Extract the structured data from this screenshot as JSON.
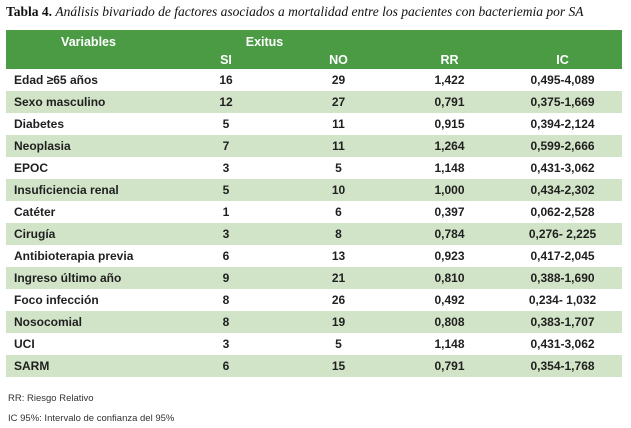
{
  "title": {
    "label": "Tabla 4.",
    "text": "Análisis bivariado de factores asociados a mortalidad entre los pacientes con bacteriemia por SA"
  },
  "table": {
    "group_header": {
      "variables": "Variables",
      "exitus": "Exitus"
    },
    "columns": [
      "SI",
      "NO",
      "RR",
      "IC"
    ],
    "rows": [
      {
        "variable": "Edad ≥65 años",
        "si": "16",
        "no": "29",
        "rr": "1,422",
        "ic": "0,495-4,089"
      },
      {
        "variable": "Sexo masculino",
        "si": "12",
        "no": "27",
        "rr": "0,791",
        "ic": "0,375-1,669"
      },
      {
        "variable": "Diabetes",
        "si": "5",
        "no": "11",
        "rr": "0,915",
        "ic": "0,394-2,124"
      },
      {
        "variable": "Neoplasia",
        "si": "7",
        "no": "11",
        "rr": "1,264",
        "ic": "0,599-2,666"
      },
      {
        "variable": "EPOC",
        "si": "3",
        "no": "5",
        "rr": "1,148",
        "ic": "0,431-3,062"
      },
      {
        "variable": "Insuficiencia renal",
        "si": "5",
        "no": "10",
        "rr": "1,000",
        "ic": "0,434-2,302"
      },
      {
        "variable": "Catéter",
        "si": "1",
        "no": "6",
        "rr": "0,397",
        "ic": "0,062-2,528"
      },
      {
        "variable": "Cirugía",
        "si": "3",
        "no": "8",
        "rr": "0,784",
        "ic": "0,276- 2,225"
      },
      {
        "variable": "Antibioterapia previa",
        "si": "6",
        "no": "13",
        "rr": "0,923",
        "ic": "0,417-2,045"
      },
      {
        "variable": "Ingreso último año",
        "si": "9",
        "no": "21",
        "rr": "0,810",
        "ic": "0,388-1,690"
      },
      {
        "variable": "Foco infección",
        "si": "8",
        "no": "26",
        "rr": "0,492",
        "ic": "0,234- 1,032"
      },
      {
        "variable": "Nosocomial",
        "si": "8",
        "no": "19",
        "rr": "0,808",
        "ic": "0,383-1,707"
      },
      {
        "variable": "UCI",
        "si": "3",
        "no": "5",
        "rr": "1,148",
        "ic": "0,431-3,062"
      },
      {
        "variable": "SARM",
        "si": "6",
        "no": "15",
        "rr": "0,791",
        "ic": "0,354-1,768"
      }
    ]
  },
  "footnotes": [
    "RR: Riesgo Relativo",
    "IC 95%: Intervalo de confianza del 95%"
  ],
  "colors": {
    "header_green": "#4a9b44",
    "row_green": "#d2e4c7",
    "body_text": "#1f1f1f"
  }
}
